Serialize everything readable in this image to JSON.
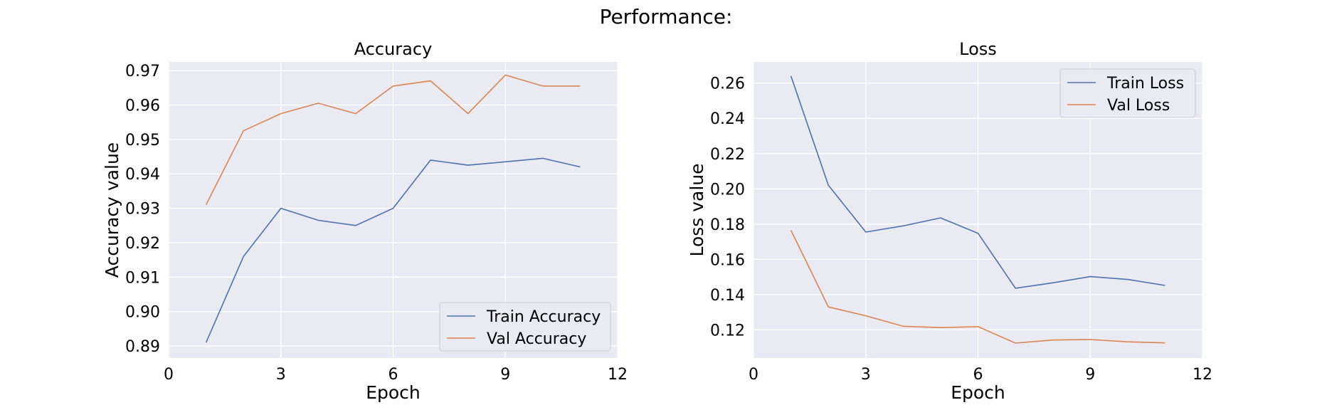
{
  "figure": {
    "title": "Performance:"
  },
  "chart_data": [
    {
      "type": "line",
      "title": "Accuracy",
      "xlabel": "Epoch",
      "ylabel": "Accuracy value",
      "xlim": [
        0,
        12
      ],
      "ylim": [
        0.8865,
        0.9725
      ],
      "xticks": [
        0,
        3,
        6,
        9,
        12
      ],
      "yticks": [
        0.89,
        0.9,
        0.91,
        0.92,
        0.93,
        0.94,
        0.95,
        0.96,
        0.97
      ],
      "ytick_decimals": 2,
      "grid": true,
      "legend_position": "bottom-right",
      "x": [
        1,
        2,
        3,
        4,
        5,
        6,
        7,
        8,
        9,
        10,
        11
      ],
      "series": [
        {
          "name": "Train Accuracy",
          "color": "#4c72b0",
          "values": [
            0.891,
            0.916,
            0.93,
            0.9265,
            0.925,
            0.93,
            0.944,
            0.9425,
            0.9435,
            0.9445,
            0.942
          ]
        },
        {
          "name": "Val Accuracy",
          "color": "#dd8452",
          "values": [
            0.931,
            0.9525,
            0.9575,
            0.9605,
            0.9575,
            0.9655,
            0.967,
            0.9575,
            0.9687,
            0.9655,
            0.9655
          ]
        }
      ]
    },
    {
      "type": "line",
      "title": "Loss",
      "xlabel": "Epoch",
      "ylabel": "Loss value",
      "xlim": [
        0,
        12
      ],
      "ylim": [
        0.104,
        0.272
      ],
      "xticks": [
        0,
        3,
        6,
        9,
        12
      ],
      "yticks": [
        0.12,
        0.14,
        0.16,
        0.18,
        0.2,
        0.22,
        0.24,
        0.26
      ],
      "ytick_decimals": 2,
      "grid": true,
      "legend_position": "top-right",
      "x": [
        1,
        2,
        3,
        4,
        5,
        6,
        7,
        8,
        9,
        10,
        11
      ],
      "series": [
        {
          "name": "Train Loss",
          "color": "#4c72b0",
          "values": [
            0.264,
            0.202,
            0.1755,
            0.179,
            0.1835,
            0.1748,
            0.1436,
            0.1467,
            0.1502,
            0.1486,
            0.1452
          ]
        },
        {
          "name": "Val Loss",
          "color": "#dd8452",
          "values": [
            0.1765,
            0.133,
            0.128,
            0.122,
            0.1213,
            0.1218,
            0.1125,
            0.1142,
            0.1145,
            0.1132,
            0.1126
          ]
        }
      ]
    }
  ]
}
